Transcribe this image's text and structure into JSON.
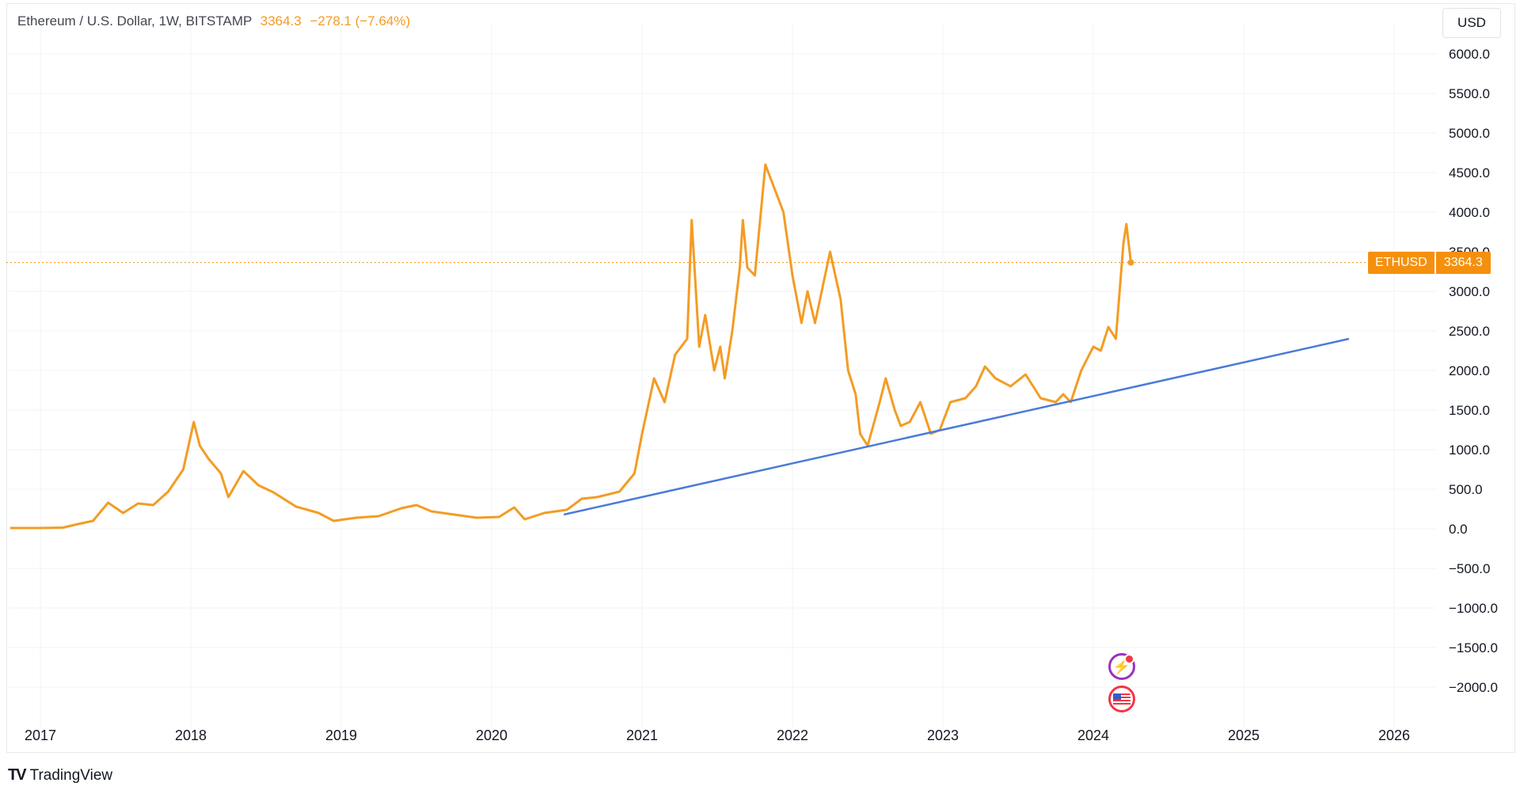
{
  "header": {
    "symbol_label": "Ethereum / U.S. Dollar, 1W, BITSTAMP",
    "last_price": "3364.3",
    "change": "−278.1 (−7.64%)"
  },
  "toolbar": {
    "currency_label": "USD"
  },
  "price_label": {
    "symbol": "ETHUSD",
    "value": "3364.3"
  },
  "branding": {
    "name": "TradingView"
  },
  "icons": [
    "tradingview-logo-icon",
    "lightning-event-icon",
    "us-flag-event-icon"
  ],
  "colors": {
    "price_line": "#f39c24",
    "trend_line": "#4a7bd8",
    "price_tag": "#f5900e"
  },
  "chart_data": {
    "type": "line",
    "y_axis_ticks": [
      "6000.0",
      "5500.0",
      "5000.0",
      "4500.0",
      "4000.0",
      "3500.0",
      "3000.0",
      "2500.0",
      "2000.0",
      "1500.0",
      "1000.0",
      "500.0",
      "0.0",
      "−500.0",
      "−1000.0",
      "−1500.0",
      "−2000.0"
    ],
    "x_axis_ticks": [
      "2017",
      "2018",
      "2019",
      "2020",
      "2021",
      "2022",
      "2023",
      "2024",
      "2025",
      "2026"
    ],
    "ylim": [
      -2300,
      6200
    ],
    "xlim": [
      2016.8,
      2026.8
    ],
    "grid": true,
    "series": [
      {
        "name": "ETHUSD",
        "color": "#f39c24",
        "points": [
          [
            2016.8,
            10
          ],
          [
            2017.0,
            10
          ],
          [
            2017.15,
            15
          ],
          [
            2017.25,
            60
          ],
          [
            2017.35,
            100
          ],
          [
            2017.45,
            330
          ],
          [
            2017.55,
            200
          ],
          [
            2017.65,
            320
          ],
          [
            2017.75,
            300
          ],
          [
            2017.85,
            470
          ],
          [
            2017.95,
            750
          ],
          [
            2018.02,
            1350
          ],
          [
            2018.06,
            1050
          ],
          [
            2018.12,
            880
          ],
          [
            2018.2,
            700
          ],
          [
            2018.25,
            400
          ],
          [
            2018.35,
            730
          ],
          [
            2018.45,
            550
          ],
          [
            2018.55,
            460
          ],
          [
            2018.7,
            280
          ],
          [
            2018.85,
            200
          ],
          [
            2018.95,
            100
          ],
          [
            2019.1,
            140
          ],
          [
            2019.25,
            160
          ],
          [
            2019.4,
            260
          ],
          [
            2019.5,
            300
          ],
          [
            2019.6,
            220
          ],
          [
            2019.75,
            180
          ],
          [
            2019.9,
            140
          ],
          [
            2020.05,
            150
          ],
          [
            2020.15,
            270
          ],
          [
            2020.22,
            120
          ],
          [
            2020.35,
            200
          ],
          [
            2020.5,
            240
          ],
          [
            2020.6,
            380
          ],
          [
            2020.7,
            400
          ],
          [
            2020.85,
            470
          ],
          [
            2020.95,
            700
          ],
          [
            2021.0,
            1200
          ],
          [
            2021.08,
            1900
          ],
          [
            2021.15,
            1600
          ],
          [
            2021.22,
            2200
          ],
          [
            2021.3,
            2400
          ],
          [
            2021.33,
            3900
          ],
          [
            2021.38,
            2300
          ],
          [
            2021.42,
            2700
          ],
          [
            2021.48,
            2000
          ],
          [
            2021.52,
            2300
          ],
          [
            2021.55,
            1900
          ],
          [
            2021.6,
            2500
          ],
          [
            2021.65,
            3300
          ],
          [
            2021.67,
            3900
          ],
          [
            2021.7,
            3300
          ],
          [
            2021.75,
            3200
          ],
          [
            2021.82,
            4600
          ],
          [
            2021.88,
            4300
          ],
          [
            2021.94,
            4000
          ],
          [
            2022.0,
            3200
          ],
          [
            2022.06,
            2600
          ],
          [
            2022.1,
            3000
          ],
          [
            2022.15,
            2600
          ],
          [
            2022.25,
            3500
          ],
          [
            2022.32,
            2900
          ],
          [
            2022.37,
            2000
          ],
          [
            2022.42,
            1700
          ],
          [
            2022.45,
            1200
          ],
          [
            2022.5,
            1050
          ],
          [
            2022.58,
            1600
          ],
          [
            2022.62,
            1900
          ],
          [
            2022.68,
            1500
          ],
          [
            2022.72,
            1300
          ],
          [
            2022.78,
            1350
          ],
          [
            2022.85,
            1600
          ],
          [
            2022.92,
            1200
          ],
          [
            2022.98,
            1250
          ],
          [
            2023.05,
            1600
          ],
          [
            2023.15,
            1650
          ],
          [
            2023.22,
            1800
          ],
          [
            2023.28,
            2050
          ],
          [
            2023.35,
            1900
          ],
          [
            2023.45,
            1800
          ],
          [
            2023.55,
            1950
          ],
          [
            2023.65,
            1650
          ],
          [
            2023.75,
            1600
          ],
          [
            2023.8,
            1700
          ],
          [
            2023.85,
            1600
          ],
          [
            2023.92,
            2000
          ],
          [
            2024.0,
            2300
          ],
          [
            2024.05,
            2250
          ],
          [
            2024.1,
            2550
          ],
          [
            2024.15,
            2400
          ],
          [
            2024.2,
            3600
          ],
          [
            2024.22,
            3850
          ],
          [
            2024.25,
            3364
          ]
        ]
      },
      {
        "name": "Trend line",
        "color": "#4a7bd8",
        "points": [
          [
            2020.48,
            180
          ],
          [
            2025.7,
            2400
          ]
        ]
      }
    ]
  }
}
